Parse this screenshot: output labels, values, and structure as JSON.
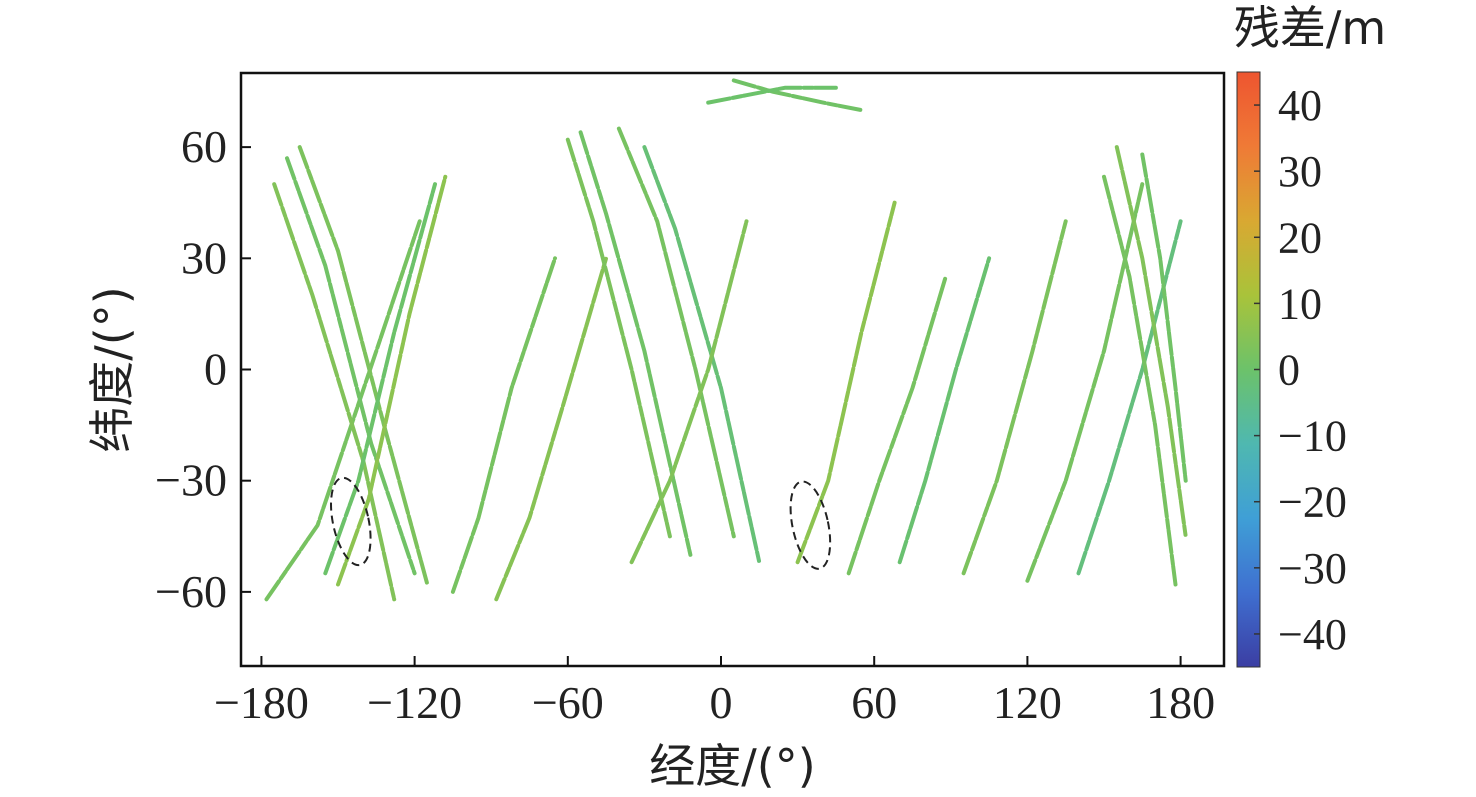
{
  "chart_data": {
    "type": "scatter",
    "xlabel": "经度/(°)",
    "ylabel": "纬度/(°)",
    "xlim": [
      -188,
      197
    ],
    "ylim": [
      -80,
      80
    ],
    "xticks": [
      "−180",
      "−120",
      "−60",
      "0",
      "60",
      "120",
      "180"
    ],
    "xtick_values": [
      -180,
      -120,
      -60,
      0,
      60,
      120,
      180
    ],
    "yticks": [
      "−60",
      "−30",
      "0",
      "30",
      "60"
    ],
    "ytick_values": [
      -60,
      -30,
      0,
      30,
      60
    ],
    "colorbar": {
      "title": "残差/m",
      "range": [
        -45,
        45
      ],
      "ticks": [
        "40",
        "30",
        "20",
        "10",
        "0",
        "−10",
        "−20",
        "−30",
        "−40"
      ],
      "tick_values": [
        40,
        30,
        20,
        10,
        0,
        -10,
        -20,
        -30,
        -40
      ],
      "colors": [
        "#3b3ea3",
        "#3f6fd0",
        "#3f9fd6",
        "#4fb8b0",
        "#6cc26a",
        "#a9c33a",
        "#d9a832",
        "#ef7a36",
        "#ee5530"
      ]
    },
    "tracks": [
      {
        "points": [
          [
            -178,
            -62
          ],
          [
            -158,
            -42
          ],
          [
            -135,
            5
          ],
          [
            -118,
            40
          ]
        ],
        "residual": 2
      },
      {
        "points": [
          [
            -175,
            50
          ],
          [
            -160,
            20
          ],
          [
            -140,
            -25
          ],
          [
            -128,
            -62
          ]
        ],
        "residual": 4
      },
      {
        "points": [
          [
            -170,
            57
          ],
          [
            -155,
            28
          ],
          [
            -137,
            -20
          ],
          [
            -120,
            -55
          ]
        ],
        "residual": 1
      },
      {
        "points": [
          [
            -165,
            60
          ],
          [
            -150,
            32
          ],
          [
            -132,
            -15
          ],
          [
            -115,
            -58
          ]
        ],
        "residual": 3
      },
      {
        "points": [
          [
            -155,
            -55
          ],
          [
            -142,
            -30
          ],
          [
            -128,
            10
          ],
          [
            -112,
            50
          ]
        ],
        "residual": 0
      },
      {
        "points": [
          [
            -150,
            -58
          ],
          [
            -138,
            -35
          ],
          [
            -122,
            15
          ],
          [
            -108,
            52
          ]
        ],
        "residual": 6
      },
      {
        "points": [
          [
            -105,
            -60
          ],
          [
            -95,
            -40
          ],
          [
            -82,
            -5
          ],
          [
            -65,
            30
          ]
        ],
        "residual": 2
      },
      {
        "points": [
          [
            -88,
            -62
          ],
          [
            -75,
            -40
          ],
          [
            -62,
            -10
          ],
          [
            -45,
            30
          ]
        ],
        "residual": 5
      },
      {
        "points": [
          [
            -60,
            62
          ],
          [
            -50,
            40
          ],
          [
            -35,
            0
          ],
          [
            -20,
            -45
          ]
        ],
        "residual": 3
      },
      {
        "points": [
          [
            -55,
            64
          ],
          [
            -45,
            42
          ],
          [
            -30,
            5
          ],
          [
            -12,
            -50
          ]
        ],
        "residual": 1
      },
      {
        "points": [
          [
            -40,
            65
          ],
          [
            -25,
            40
          ],
          [
            -10,
            0
          ],
          [
            5,
            -45
          ]
        ],
        "residual": 2
      },
      {
        "points": [
          [
            -30,
            60
          ],
          [
            -18,
            38
          ],
          [
            0,
            -5
          ],
          [
            15,
            -52
          ]
        ],
        "residual": -2
      },
      {
        "points": [
          [
            -35,
            -52
          ],
          [
            -20,
            -30
          ],
          [
            -5,
            0
          ],
          [
            10,
            40
          ]
        ],
        "residual": 4
      },
      {
        "points": [
          [
            5,
            78
          ],
          [
            20,
            75
          ],
          [
            40,
            72
          ],
          [
            55,
            70
          ]
        ],
        "residual": 1
      },
      {
        "points": [
          [
            -5,
            72
          ],
          [
            10,
            74
          ],
          [
            25,
            76
          ],
          [
            45,
            76
          ]
        ],
        "residual": 0
      },
      {
        "points": [
          [
            30,
            -52
          ],
          [
            42,
            -30
          ],
          [
            55,
            10
          ],
          [
            68,
            45
          ]
        ],
        "residual": 6
      },
      {
        "points": [
          [
            50,
            -55
          ],
          [
            62,
            -30
          ],
          [
            75,
            -5
          ],
          [
            88,
            25
          ]
        ],
        "residual": 2
      },
      {
        "points": [
          [
            70,
            -52
          ],
          [
            80,
            -30
          ],
          [
            92,
            0
          ],
          [
            105,
            30
          ]
        ],
        "residual": -1
      },
      {
        "points": [
          [
            95,
            -55
          ],
          [
            108,
            -30
          ],
          [
            122,
            5
          ],
          [
            135,
            40
          ]
        ],
        "residual": 3
      },
      {
        "points": [
          [
            120,
            -57
          ],
          [
            135,
            -30
          ],
          [
            150,
            5
          ],
          [
            165,
            50
          ]
        ],
        "residual": 2
      },
      {
        "points": [
          [
            140,
            -55
          ],
          [
            152,
            -30
          ],
          [
            165,
            0
          ],
          [
            180,
            40
          ]
        ],
        "residual": -3
      },
      {
        "points": [
          [
            155,
            60
          ],
          [
            165,
            30
          ],
          [
            175,
            -10
          ],
          [
            182,
            -45
          ]
        ],
        "residual": 4
      },
      {
        "points": [
          [
            165,
            58
          ],
          [
            172,
            30
          ],
          [
            178,
            -5
          ],
          [
            182,
            -30
          ]
        ],
        "residual": 1
      },
      {
        "points": [
          [
            150,
            52
          ],
          [
            160,
            25
          ],
          [
            170,
            -15
          ],
          [
            178,
            -58
          ]
        ],
        "residual": 2
      }
    ],
    "annotations": [
      {
        "shape": "ellipse",
        "center": [
          -145,
          -41
        ],
        "radii": [
          7,
          12
        ]
      },
      {
        "shape": "ellipse",
        "center": [
          35,
          -42
        ],
        "radii": [
          7,
          12
        ]
      }
    ]
  }
}
